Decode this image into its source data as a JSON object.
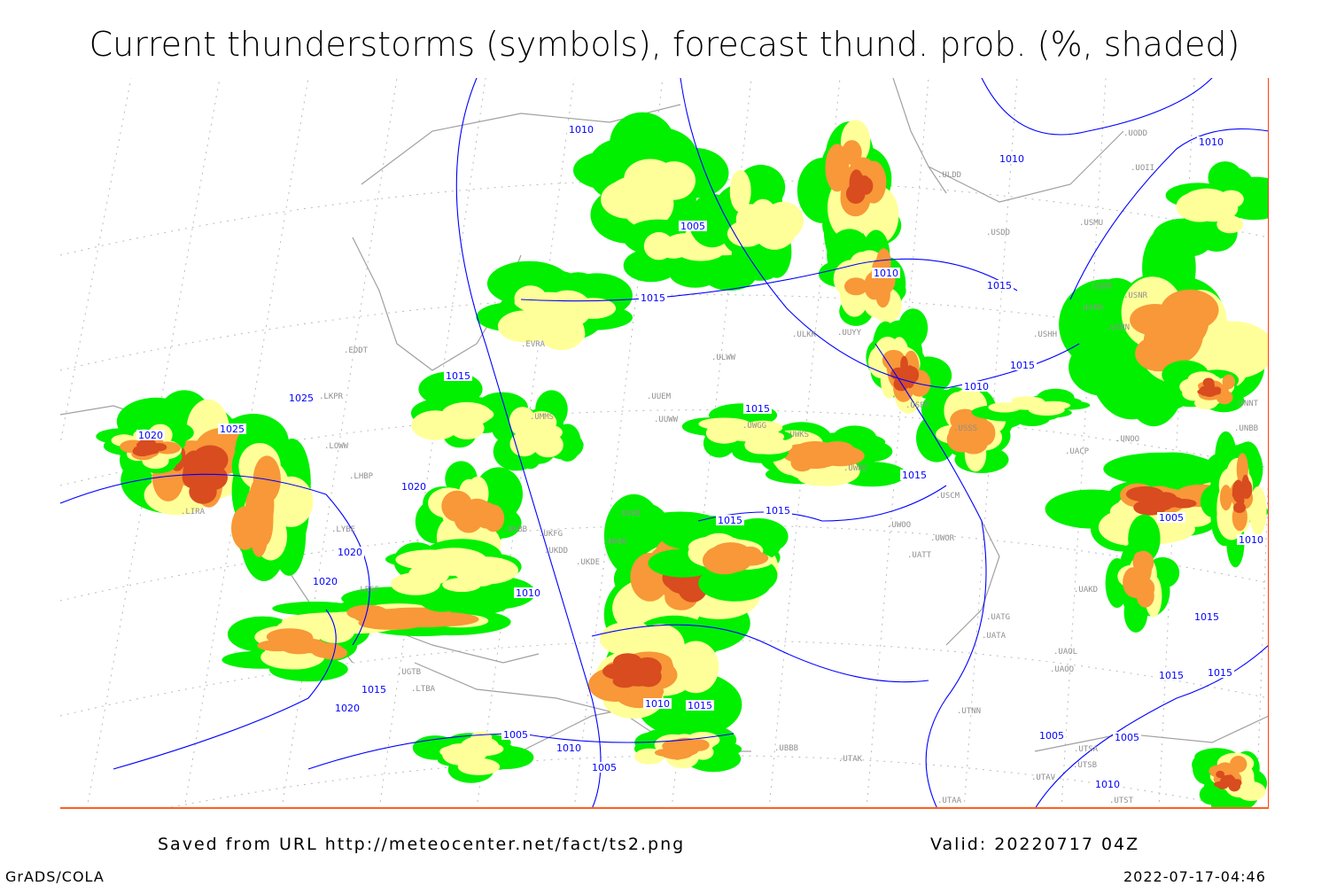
{
  "title": "Current thunderstorms (symbols), forecast thund. prob. (%, shaded)",
  "footer": {
    "source": "Saved from URL http://meteocenter.net/fact/ts2.png",
    "valid": "Valid: 20220717 04Z",
    "software": "GrADS/COLA",
    "timestamp": "2022-07-17-04:46"
  },
  "map": {
    "shading_colors": {
      "low": "#00f000",
      "mid": "#ffff99",
      "high": "#f89838",
      "very_high": "#d84c20"
    },
    "isobar_color": "#0000ff",
    "coast_color": "#a0a0a0",
    "isobar_labels": [
      "1010",
      "1005",
      "1010",
      "1015",
      "1025",
      "1025",
      "1020",
      "1020",
      "1020",
      "1020",
      "1015",
      "1015",
      "1015",
      "1010",
      "1015",
      "1010",
      "1010",
      "1015",
      "1015",
      "1015",
      "1010",
      "1005",
      "1010",
      "1010",
      "1015",
      "1020",
      "1015",
      "1005",
      "1005",
      "1005",
      "1005",
      "1010",
      "1015",
      "1015",
      "1010",
      "1015"
    ],
    "stations": [
      "EDDT",
      "LKPR",
      "LOWW",
      "LIRA",
      "LHBP",
      "LYBE",
      "LBSF",
      "UMMS",
      "UKBB",
      "UUEM",
      "UUWW",
      "ULWW",
      "ULKK",
      "UUYY",
      "UWGG",
      "UWKS",
      "USPP",
      "USSS",
      "UWKD",
      "USCM",
      "UWOO",
      "UWOR",
      "UATT",
      "UAKD",
      "UATG",
      "UATA",
      "UAOL",
      "UAOO",
      "UTNN",
      "UTAK",
      "UBBB",
      "UGTB",
      "LTBA",
      "UTSA",
      "UTSB",
      "UTAV",
      "UTAA",
      "UTST",
      "ULDD",
      "USDD",
      "USMU",
      "USHH",
      "UNOO",
      "UNBB",
      "UACP",
      "UODD",
      "UOII",
      "USRR",
      "USPR",
      "USNR",
      "USNN",
      "UNNT",
      "UKDE",
      "UKHH",
      "UUOB",
      "UKFG",
      "UKDD",
      "EVRA"
    ]
  }
}
